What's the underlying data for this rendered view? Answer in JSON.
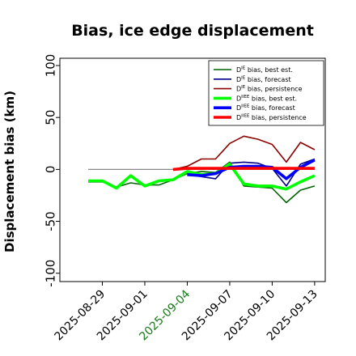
{
  "chart_data": {
    "type": "line",
    "title": "Bias, ice edge displacement",
    "ylabel": "Displacement bias (km)",
    "xlabel": "",
    "ylim": [
      -108,
      107
    ],
    "yticks": [
      -100,
      -50,
      0,
      50,
      100
    ],
    "xlim": [
      "2025-08-26",
      "2025-09-13 18:00"
    ],
    "xtick_labels": [
      "2025-08-29",
      "2025-09-01",
      "2025-09-04",
      "2025-09-07",
      "2025-09-10",
      "2025-09-13"
    ],
    "highlighted_xtick": "2025-09-04",
    "highlight_color": "#1a7a1a",
    "zero_line": {
      "y": 0,
      "x_start": "2025-08-28",
      "x_end": "2025-09-13",
      "color": "#888888"
    },
    "legend_position": "upper-right",
    "series": [
      {
        "name": "D",
        "superscript": "IE",
        "suffix": " bias, best est.",
        "color": "#006400",
        "width": 1.6,
        "x": [
          "2025-08-28",
          "2025-08-29",
          "2025-08-30",
          "2025-08-31",
          "2025-09-01",
          "2025-09-02",
          "2025-09-03",
          "2025-09-04",
          "2025-09-05",
          "2025-09-06",
          "2025-09-07",
          "2025-09-08",
          "2025-09-09",
          "2025-09-10",
          "2025-09-11",
          "2025-09-12",
          "2025-09-13"
        ],
        "values": [
          -12,
          -12,
          -17,
          -13,
          -15,
          -15,
          -10,
          -4,
          -2,
          -3,
          7,
          -16,
          -17,
          -18,
          -32,
          -20,
          -16
        ]
      },
      {
        "name": "D",
        "superscript": "IE",
        "suffix": " bias, forecast",
        "color": "#00008b",
        "width": 1.6,
        "x": [
          "2025-09-04",
          "2025-09-05",
          "2025-09-06",
          "2025-09-07",
          "2025-09-08",
          "2025-09-09",
          "2025-09-10",
          "2025-09-11",
          "2025-09-12",
          "2025-09-13"
        ],
        "values": [
          -4,
          -7,
          -9,
          6,
          7,
          6,
          1,
          -16,
          5,
          10
        ]
      },
      {
        "name": "D",
        "superscript": "IE",
        "suffix": " bias, persistence",
        "color": "#8b0000",
        "width": 1.6,
        "x": [
          "2025-09-03",
          "2025-09-04",
          "2025-09-05",
          "2025-09-06",
          "2025-09-07",
          "2025-09-08",
          "2025-09-09",
          "2025-09-10",
          "2025-09-11",
          "2025-09-12",
          "2025-09-13"
        ],
        "values": [
          0,
          3,
          10,
          10,
          25,
          32,
          29,
          24,
          7,
          26,
          19
        ]
      },
      {
        "name": "D",
        "superscript": "IIEE",
        "suffix": " bias, best est.",
        "color": "#00ff00",
        "width": 3.6,
        "x": [
          "2025-08-28",
          "2025-08-29",
          "2025-08-30",
          "2025-08-31",
          "2025-09-01",
          "2025-09-02",
          "2025-09-03",
          "2025-09-04",
          "2025-09-05",
          "2025-09-06",
          "2025-09-07",
          "2025-09-08",
          "2025-09-09",
          "2025-09-10",
          "2025-09-11",
          "2025-09-12",
          "2025-09-13"
        ],
        "values": [
          -11,
          -11,
          -18,
          -6,
          -16,
          -11,
          -10,
          -2,
          -5,
          -4,
          5,
          -14,
          -16,
          -16,
          -19,
          -12,
          -6
        ]
      },
      {
        "name": "D",
        "superscript": "IIEE",
        "suffix": " bias, forecast",
        "color": "#0000ff",
        "width": 3.6,
        "x": [
          "2025-09-04",
          "2025-09-05",
          "2025-09-06",
          "2025-09-07",
          "2025-09-08",
          "2025-09-09",
          "2025-09-10",
          "2025-09-11",
          "2025-09-12",
          "2025-09-13"
        ],
        "values": [
          -5,
          -6,
          -4,
          2,
          3,
          3,
          2,
          -9,
          2,
          9
        ]
      },
      {
        "name": "D",
        "superscript": "IIEE",
        "suffix": " bias, persistence",
        "color": "#ff0000",
        "width": 3.6,
        "x": [
          "2025-09-03",
          "2025-09-04",
          "2025-09-05",
          "2025-09-06",
          "2025-09-07",
          "2025-09-08",
          "2025-09-09",
          "2025-09-10",
          "2025-09-11",
          "2025-09-12",
          "2025-09-13"
        ],
        "values": [
          0,
          1,
          1,
          1,
          1,
          1,
          1,
          1,
          1,
          1,
          1
        ]
      }
    ]
  }
}
